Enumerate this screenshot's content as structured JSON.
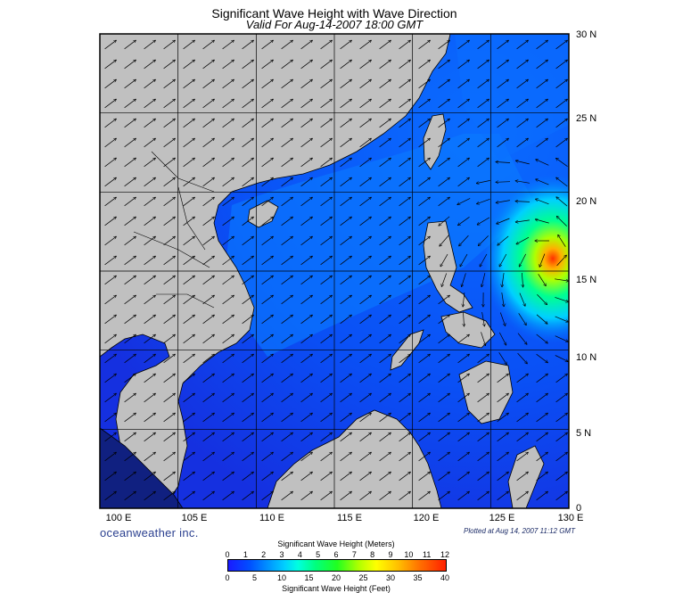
{
  "title": "Significant Wave Height with Wave Direction",
  "subtitle": "Valid For Aug-14-2007 18:00 GMT",
  "lat_labels": [
    "30 N",
    "25 N",
    "20 N",
    "15 N",
    "10 N",
    "5 N",
    "0"
  ],
  "lon_labels": [
    "100 E",
    "105 E",
    "110 E",
    "115 E",
    "120 E",
    "125 E",
    "130 E"
  ],
  "brand": "oceanweather inc.",
  "plotted_at": "Plotted at Aug 14, 2007 11:12 GMT",
  "colorbar": {
    "title_meters": "Significant Wave Height (Meters)",
    "title_feet": "Significant Wave Height (Feet)",
    "meter_ticks": [
      "0",
      "1",
      "2",
      "3",
      "4",
      "5",
      "6",
      "7",
      "8",
      "9",
      "10",
      "11",
      "12"
    ],
    "feet_ticks": [
      "0",
      "5",
      "10",
      "15",
      "20",
      "25",
      "30",
      "35",
      "40"
    ]
  },
  "colors": {
    "land": "#c0c0c0",
    "sea_low": "#1a1aff",
    "sea_mid": "#0090ff",
    "storm": "#ff2000"
  },
  "map_extent": {
    "lon_min": 100,
    "lon_max": 130,
    "lat_min": 0,
    "lat_max": 30
  }
}
